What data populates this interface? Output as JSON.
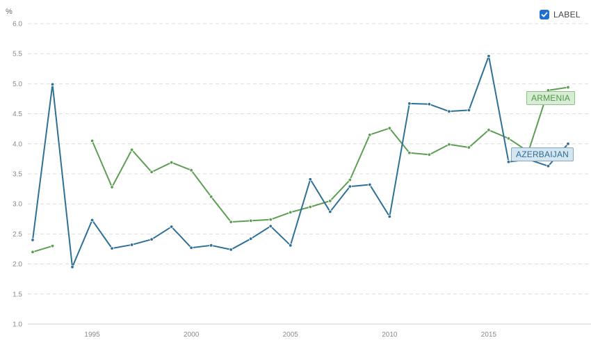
{
  "chart_data": {
    "type": "line",
    "unit": "%",
    "ylim": [
      1.0,
      6.0
    ],
    "xlim": [
      1992,
      2019
    ],
    "y_ticks": [
      "1.0",
      "1.5",
      "2.0",
      "2.5",
      "3.0",
      "3.5",
      "4.0",
      "4.5",
      "5.0",
      "5.5",
      "6.0"
    ],
    "x_ticks": [
      "1995",
      "2000",
      "2005",
      "2010",
      "2015"
    ],
    "grid": true,
    "x": [
      1992,
      1993,
      1994,
      1995,
      1996,
      1997,
      1998,
      1999,
      2000,
      2001,
      2002,
      2003,
      2004,
      2005,
      2006,
      2007,
      2008,
      2009,
      2010,
      2011,
      2012,
      2013,
      2014,
      2015,
      2016,
      2017,
      2018,
      2019
    ],
    "series": [
      {
        "name": "ARMENIA",
        "color": "#5c9e52",
        "values": [
          2.2,
          2.3,
          null,
          4.05,
          3.28,
          3.9,
          3.53,
          3.69,
          3.56,
          3.12,
          2.7,
          2.72,
          2.74,
          2.86,
          2.95,
          3.05,
          3.4,
          4.15,
          4.26,
          3.85,
          3.82,
          3.99,
          3.94,
          4.23,
          4.09,
          3.87,
          4.89,
          4.94
        ]
      },
      {
        "name": "AZERBAIJAN",
        "color": "#2e7095",
        "values": [
          2.4,
          4.99,
          1.95,
          2.73,
          2.26,
          2.32,
          2.41,
          2.62,
          2.27,
          2.31,
          2.24,
          2.42,
          2.63,
          2.31,
          3.41,
          2.87,
          3.29,
          3.32,
          2.79,
          4.67,
          4.66,
          4.54,
          4.56,
          5.46,
          3.7,
          3.74,
          3.63,
          4.0
        ]
      }
    ]
  },
  "legend_toggle": {
    "label": "LABEL",
    "checked": true
  }
}
